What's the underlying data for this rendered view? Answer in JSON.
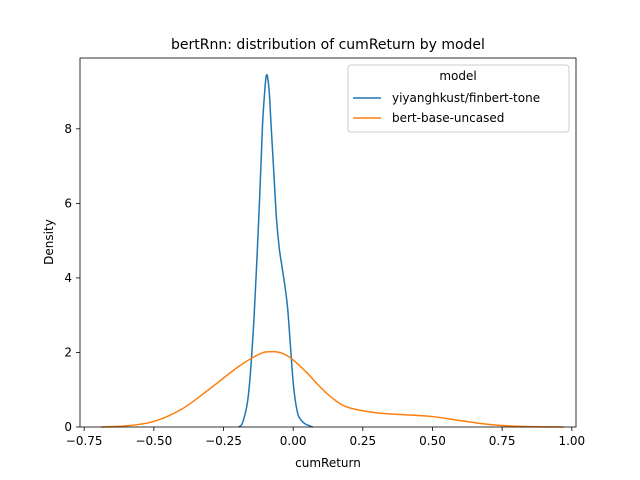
{
  "chart_data": {
    "type": "line",
    "title": "bertRnn: distribution of cumReturn by model",
    "xlabel": "cumReturn",
    "ylabel": "Density",
    "xlim": [
      -0.765,
      1.015
    ],
    "ylim": [
      0,
      9.9
    ],
    "xticks": [
      -0.75,
      -0.5,
      -0.25,
      0.0,
      0.25,
      0.5,
      0.75,
      1.0
    ],
    "xtick_labels": [
      "−0.75",
      "−0.50",
      "−0.25",
      "0.00",
      "0.25",
      "0.50",
      "0.75",
      "1.00"
    ],
    "yticks": [
      0,
      2,
      4,
      6,
      8
    ],
    "ytick_labels": [
      "0",
      "2",
      "4",
      "6",
      "8"
    ],
    "grid": false,
    "legend": {
      "title": "model",
      "placement": "top-right"
    },
    "series": [
      {
        "name": "yiyanghkust/finbert-tone",
        "color": "#1f77b4",
        "x": [
          -0.195,
          -0.18,
          -0.16,
          -0.14,
          -0.12,
          -0.11,
          -0.1,
          -0.095,
          -0.09,
          -0.085,
          -0.08,
          -0.07,
          -0.06,
          -0.05,
          -0.04,
          -0.03,
          -0.02,
          -0.01,
          0.0,
          0.01,
          0.02,
          0.04,
          0.06,
          0.07
        ],
        "y": [
          0.0,
          0.15,
          0.9,
          3.0,
          6.2,
          8.1,
          9.2,
          9.45,
          9.3,
          8.9,
          8.2,
          6.9,
          5.6,
          4.8,
          4.3,
          3.8,
          3.2,
          2.2,
          1.2,
          0.6,
          0.28,
          0.1,
          0.03,
          0.0
        ]
      },
      {
        "name": "bert-base-uncased",
        "color": "#ff7f0e",
        "x": [
          -0.69,
          -0.6,
          -0.5,
          -0.4,
          -0.3,
          -0.2,
          -0.12,
          -0.08,
          -0.04,
          0.0,
          0.05,
          0.1,
          0.15,
          0.2,
          0.3,
          0.4,
          0.5,
          0.6,
          0.7,
          0.8,
          0.9,
          0.97
        ],
        "y": [
          0.0,
          0.03,
          0.15,
          0.48,
          1.02,
          1.6,
          1.96,
          2.02,
          1.98,
          1.8,
          1.45,
          1.05,
          0.72,
          0.52,
          0.38,
          0.33,
          0.28,
          0.17,
          0.07,
          0.02,
          0.005,
          0.0
        ]
      }
    ]
  }
}
